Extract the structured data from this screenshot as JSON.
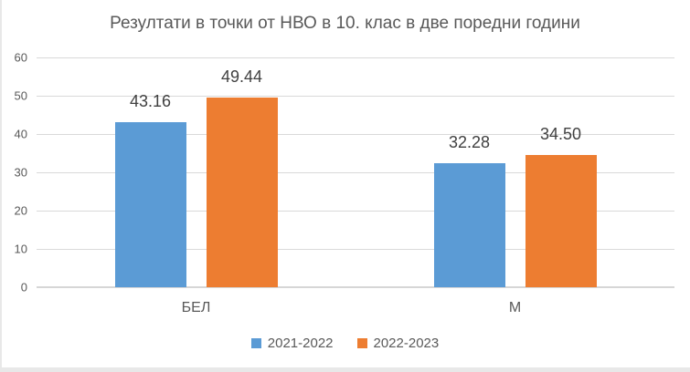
{
  "chart_data": {
    "type": "bar",
    "title": "Резултати в точки от НВО в 10. клас в две поредни години",
    "categories": [
      "БЕЛ",
      "М"
    ],
    "series": [
      {
        "name": "2021-2022",
        "color": "#5B9BD5",
        "values": [
          43.16,
          32.28
        ],
        "labels": [
          "43.16",
          "32.28"
        ]
      },
      {
        "name": "2022-2023",
        "color": "#ED7D31",
        "values": [
          49.44,
          34.5
        ],
        "labels": [
          "49.44",
          "34.50"
        ]
      }
    ],
    "xlabel": "",
    "ylabel": "",
    "ylim": [
      0,
      60
    ],
    "yticks": [
      0,
      10,
      20,
      30,
      40,
      50,
      60
    ],
    "grid": true,
    "legend_position": "bottom"
  },
  "colors": {
    "series_blue": "#5B9BD5",
    "series_orange": "#ED7D31",
    "title_text": "#595959",
    "axis_text": "#595959",
    "value_label_text": "#404040",
    "gridline": "#D9D9D9",
    "baseline": "#D6D6D6",
    "background": "#FFFFFF",
    "window_edge": "#E8E8E8"
  }
}
